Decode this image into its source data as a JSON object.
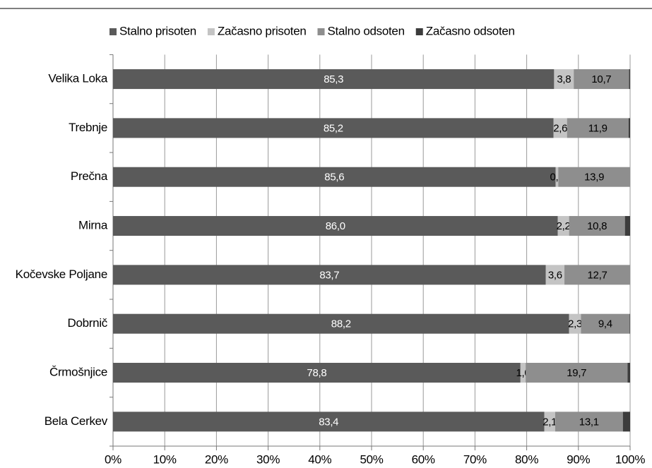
{
  "chart_data": {
    "type": "stacked_barh",
    "categories": [
      "Velika Loka",
      "Trebnje",
      "Prečna",
      "Mirna",
      "Kočevske Poljane",
      "Dobrnič",
      "Črmošnjice",
      "Bela Cerkev"
    ],
    "series": [
      {
        "name": "Stalno prisoten",
        "color": "#5a5a5a",
        "label_color": "#ffffff",
        "values": [
          85.3,
          85.2,
          85.6,
          86.0,
          83.7,
          88.2,
          78.8,
          83.4
        ],
        "value_labels": [
          "85,3",
          "85,2",
          "85,6",
          "86,0",
          "83,7",
          "88,2",
          "78,8",
          "83,4"
        ]
      },
      {
        "name": "Začasno prisoten",
        "color": "#c4c4c4",
        "label_color": "#000000",
        "values": [
          3.8,
          2.6,
          0.5,
          2.2,
          3.6,
          2.3,
          1.0,
          2.1
        ],
        "value_labels": [
          "3,8",
          "2,6",
          "0,5",
          "2,2",
          "3,6",
          "2,3",
          "1,0",
          "2,1"
        ]
      },
      {
        "name": "Stalno odsoten",
        "color": "#8e8e8e",
        "label_color": "#000000",
        "values": [
          10.7,
          11.9,
          13.9,
          10.8,
          12.7,
          9.4,
          19.7,
          13.1
        ],
        "value_labels": [
          "10,7",
          "11,9",
          "13,9",
          "10,8",
          "12,7",
          "9,4",
          "19,7",
          "13,1"
        ]
      },
      {
        "name": "Začasno odsoten",
        "color": "#3c3c3c",
        "values": [
          0.2,
          0.3,
          0.0,
          1.0,
          0.0,
          0.1,
          0.5,
          1.4
        ]
      }
    ],
    "xlim": [
      0,
      100
    ],
    "xticks": [
      {
        "value": 0,
        "label": "0%"
      },
      {
        "value": 10,
        "label": "10%"
      },
      {
        "value": 20,
        "label": "20%"
      },
      {
        "value": 30,
        "label": "30%"
      },
      {
        "value": 40,
        "label": "40%"
      },
      {
        "value": 50,
        "label": "50%"
      },
      {
        "value": 60,
        "label": "60%"
      },
      {
        "value": 70,
        "label": "70%"
      },
      {
        "value": 80,
        "label": "80%"
      },
      {
        "value": 90,
        "label": "90%"
      },
      {
        "value": 100,
        "label": "100%"
      }
    ],
    "grid": true,
    "legend": "top"
  }
}
